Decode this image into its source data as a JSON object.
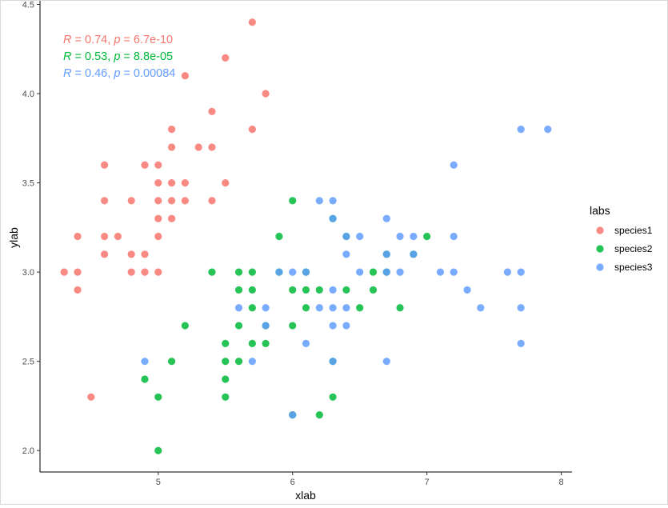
{
  "chart_data": {
    "type": "scatter",
    "xlabel": "xlab",
    "ylabel": "ylab",
    "xlim": [
      4.12,
      8.08
    ],
    "ylim": [
      1.88,
      4.52
    ],
    "xticks": [
      5,
      6,
      7,
      8
    ],
    "yticks": [
      2.0,
      2.5,
      3.0,
      3.5,
      4.0,
      4.5
    ],
    "xtick_labels": [
      "5",
      "6",
      "7",
      "8"
    ],
    "ytick_labels": [
      "2.0",
      "2.5",
      "3.0",
      "3.5",
      "4.0",
      "4.5"
    ],
    "grid": false,
    "legend": {
      "title": "labs",
      "position": "right",
      "entries": [
        "species1",
        "species2",
        "species3"
      ]
    },
    "annotations": [
      {
        "r": "0.74",
        "p": "6.7e-10",
        "color": "#F8766D"
      },
      {
        "r": "0.53",
        "p": "8.8e-05",
        "color": "#00BA38"
      },
      {
        "r": "0.46",
        "p": "0.00084",
        "color": "#619CFF"
      }
    ],
    "series": [
      {
        "name": "species1",
        "color": "#F8766D",
        "points": [
          [
            4.3,
            3.0
          ],
          [
            4.4,
            2.9
          ],
          [
            4.4,
            3.0
          ],
          [
            4.4,
            3.2
          ],
          [
            4.5,
            2.3
          ],
          [
            4.6,
            3.1
          ],
          [
            4.6,
            3.2
          ],
          [
            4.6,
            3.4
          ],
          [
            4.6,
            3.6
          ],
          [
            4.7,
            3.2
          ],
          [
            4.8,
            3.0
          ],
          [
            4.8,
            3.1
          ],
          [
            4.8,
            3.4
          ],
          [
            4.9,
            3.0
          ],
          [
            4.9,
            3.1
          ],
          [
            4.9,
            3.6
          ],
          [
            5.0,
            3.0
          ],
          [
            5.0,
            3.2
          ],
          [
            5.0,
            3.3
          ],
          [
            5.0,
            3.4
          ],
          [
            5.0,
            3.5
          ],
          [
            5.0,
            3.6
          ],
          [
            5.1,
            3.3
          ],
          [
            5.1,
            3.4
          ],
          [
            5.1,
            3.5
          ],
          [
            5.1,
            3.7
          ],
          [
            5.1,
            3.8
          ],
          [
            5.2,
            3.4
          ],
          [
            5.2,
            3.5
          ],
          [
            5.2,
            4.1
          ],
          [
            5.3,
            3.7
          ],
          [
            5.4,
            3.4
          ],
          [
            5.4,
            3.7
          ],
          [
            5.4,
            3.9
          ],
          [
            5.5,
            3.5
          ],
          [
            5.5,
            4.2
          ],
          [
            5.7,
            3.8
          ],
          [
            5.7,
            4.4
          ],
          [
            5.8,
            4.0
          ]
        ]
      },
      {
        "name": "species2",
        "color": "#00BA38",
        "points": [
          [
            4.9,
            2.4
          ],
          [
            5.0,
            2.0
          ],
          [
            5.0,
            2.3
          ],
          [
            5.1,
            2.5
          ],
          [
            5.2,
            2.7
          ],
          [
            5.4,
            3.0
          ],
          [
            5.5,
            2.3
          ],
          [
            5.5,
            2.4
          ],
          [
            5.5,
            2.5
          ],
          [
            5.5,
            2.6
          ],
          [
            5.6,
            2.5
          ],
          [
            5.6,
            2.7
          ],
          [
            5.6,
            2.9
          ],
          [
            5.6,
            3.0
          ],
          [
            5.7,
            2.6
          ],
          [
            5.7,
            2.8
          ],
          [
            5.7,
            2.9
          ],
          [
            5.7,
            3.0
          ],
          [
            5.8,
            2.6
          ],
          [
            5.8,
            2.7
          ],
          [
            5.9,
            3.0
          ],
          [
            5.9,
            3.2
          ],
          [
            6.0,
            2.2
          ],
          [
            6.0,
            2.7
          ],
          [
            6.0,
            2.9
          ],
          [
            6.0,
            3.4
          ],
          [
            6.1,
            2.8
          ],
          [
            6.1,
            2.9
          ],
          [
            6.1,
            3.0
          ],
          [
            6.2,
            2.2
          ],
          [
            6.2,
            2.9
          ],
          [
            6.3,
            2.3
          ],
          [
            6.3,
            2.5
          ],
          [
            6.3,
            3.3
          ],
          [
            6.4,
            2.9
          ],
          [
            6.4,
            3.2
          ],
          [
            6.5,
            2.8
          ],
          [
            6.6,
            2.9
          ],
          [
            6.6,
            3.0
          ],
          [
            6.7,
            3.0
          ],
          [
            6.7,
            3.1
          ],
          [
            6.8,
            2.8
          ],
          [
            6.9,
            3.1
          ],
          [
            7.0,
            3.2
          ]
        ]
      },
      {
        "name": "species3",
        "color": "#619CFF",
        "points": [
          [
            4.9,
            2.5
          ],
          [
            5.6,
            2.8
          ],
          [
            5.7,
            2.5
          ],
          [
            5.8,
            2.7
          ],
          [
            5.8,
            2.8
          ],
          [
            5.9,
            3.0
          ],
          [
            6.0,
            2.2
          ],
          [
            6.0,
            3.0
          ],
          [
            6.1,
            2.6
          ],
          [
            6.1,
            3.0
          ],
          [
            6.2,
            2.8
          ],
          [
            6.2,
            3.4
          ],
          [
            6.3,
            2.5
          ],
          [
            6.3,
            2.7
          ],
          [
            6.3,
            2.8
          ],
          [
            6.3,
            2.9
          ],
          [
            6.3,
            3.3
          ],
          [
            6.3,
            3.4
          ],
          [
            6.4,
            2.7
          ],
          [
            6.4,
            2.8
          ],
          [
            6.4,
            3.1
          ],
          [
            6.4,
            3.2
          ],
          [
            6.5,
            3.0
          ],
          [
            6.5,
            3.2
          ],
          [
            6.7,
            2.5
          ],
          [
            6.7,
            3.0
          ],
          [
            6.7,
            3.1
          ],
          [
            6.7,
            3.3
          ],
          [
            6.8,
            3.0
          ],
          [
            6.8,
            3.2
          ],
          [
            6.9,
            3.1
          ],
          [
            6.9,
            3.2
          ],
          [
            7.1,
            3.0
          ],
          [
            7.2,
            3.0
          ],
          [
            7.2,
            3.2
          ],
          [
            7.2,
            3.6
          ],
          [
            7.3,
            2.9
          ],
          [
            7.4,
            2.8
          ],
          [
            7.6,
            3.0
          ],
          [
            7.7,
            2.6
          ],
          [
            7.7,
            2.8
          ],
          [
            7.7,
            3.0
          ],
          [
            7.7,
            3.8
          ],
          [
            7.9,
            3.8
          ]
        ]
      }
    ]
  }
}
